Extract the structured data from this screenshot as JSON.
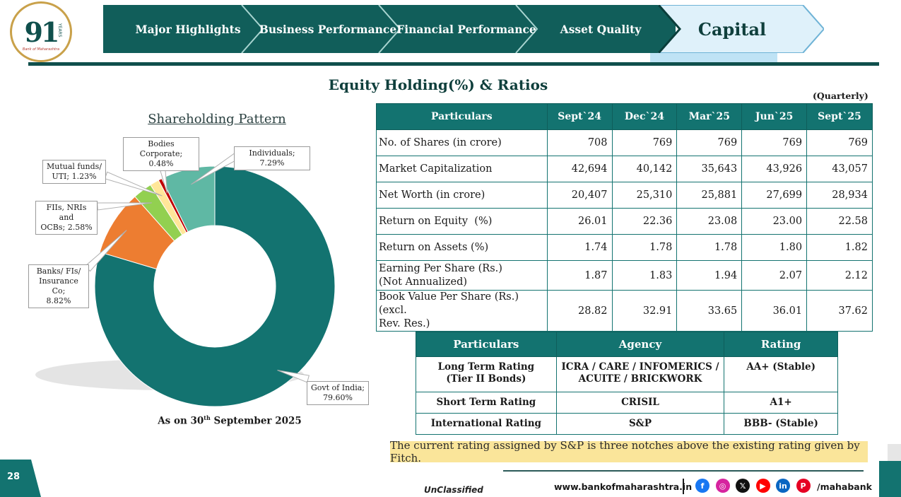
{
  "logo": {
    "number": "91",
    "years": "YEARS",
    "tagline": "Bank of Maharashtra"
  },
  "nav": {
    "items": [
      "Major Highlights",
      "Business Performance",
      "Financial Performance",
      "Asset Quality"
    ],
    "active": "Capital"
  },
  "title": "Equity Holding(%) & Ratios",
  "quarterly": "(Quarterly)",
  "chart_data": {
    "type": "pie",
    "title": "Shareholding Pattern",
    "subtitle": "As on 30th September 2025",
    "categories": [
      "Govt of India",
      "Banks/ FIs/ Insurance Co",
      "FIIs, NRIs and OCBs",
      "Mutual funds/ UTI",
      "Bodies Corporate",
      "Individuals"
    ],
    "values": [
      79.6,
      8.82,
      2.58,
      1.23,
      0.48,
      7.29
    ],
    "colors": [
      "#137370",
      "#ed7d31",
      "#92d050",
      "#ffe699",
      "#c00000",
      "#5fb8a4"
    ],
    "labels": [
      "Govt of India; 79.60%",
      "Banks/ FIs/ Insurance Co; 8.82%",
      "FIIs, NRIs and OCBs; 2.58%",
      "Mutual funds/ UTI; 1.23%",
      "Bodies Corporate; 0.48%",
      "Individuals; 7.29%"
    ],
    "label_lines": [
      [
        "Govt of India;",
        "79.60%"
      ],
      [
        "Banks/ FIs/",
        "Insurance Co;",
        "8.82%"
      ],
      [
        "FIIs, NRIs and",
        "OCBs; 2.58%"
      ],
      [
        "Mutual funds/",
        "UTI; 1.23%"
      ],
      [
        "Bodies Corporate;",
        "0.48%"
      ],
      [
        "Individuals; 7.29%"
      ]
    ],
    "legend": "callouts"
  },
  "as_on": {
    "prefix": "As on 30",
    "sup": "th",
    "suffix": " September 2025"
  },
  "ratios": {
    "headers": [
      "Particulars",
      "Sept`24",
      "Dec`24",
      "Mar`25",
      "Jun`25",
      "Sept`25"
    ],
    "rows": [
      {
        "label": "No. of Shares (in crore)",
        "values": [
          "708",
          "769",
          "769",
          "769",
          "769"
        ]
      },
      {
        "label": "Market Capitalization",
        "values": [
          "42,694",
          "40,142",
          "35,643",
          "43,926",
          "43,057"
        ]
      },
      {
        "label": "Net Worth (in crore)",
        "values": [
          "20,407",
          "25,310",
          "25,881",
          "27,699",
          "28,934"
        ]
      },
      {
        "label": "Return on Equity  (%)",
        "values": [
          "26.01",
          "22.36",
          "23.08",
          "23.00",
          "22.58"
        ]
      },
      {
        "label": "Return on Assets (%)",
        "values": [
          "1.74",
          "1.78",
          "1.78",
          "1.80",
          "1.82"
        ]
      },
      {
        "label": "Earning Per Share (Rs.)",
        "label2": "(Not Annualized)",
        "values": [
          "1.87",
          "1.83",
          "1.94",
          "2.07",
          "2.12"
        ]
      },
      {
        "label": "Book Value Per Share (Rs.) (excl.",
        "label2": "Rev. Res.)",
        "values": [
          "28.82",
          "32.91",
          "33.65",
          "36.01",
          "37.62"
        ]
      }
    ]
  },
  "rating": {
    "headers": [
      "Particulars",
      "Agency",
      "Rating"
    ],
    "rows": [
      {
        "particular": "Long Term Rating",
        "particular2": "(Tier II Bonds)",
        "agency": "ICRA / CARE / INFOMERICS /",
        "agency2": "ACUITE / BRICKWORK",
        "rating": "AA+ (Stable)"
      },
      {
        "particular": "Short Term Rating",
        "agency": "CRISIL",
        "rating": "A1+"
      },
      {
        "particular": "International Rating",
        "agency": "S&P",
        "rating": "BBB- (Stable)"
      }
    ]
  },
  "note": "The current rating assigned by S&P is three notches above the existing rating given by Fitch.",
  "footer": {
    "page": "28",
    "classification": "UnClassified",
    "website": "www.bankofmaharashtra.in",
    "handle": "/mahabank",
    "social": [
      {
        "icon": "facebook-icon",
        "glyph": "f",
        "color": "#1877f2"
      },
      {
        "icon": "instagram-icon",
        "glyph": "◎",
        "color": "#d6249f"
      },
      {
        "icon": "x-icon",
        "glyph": "𝕏",
        "color": "#111111"
      },
      {
        "icon": "youtube-icon",
        "glyph": "▶",
        "color": "#ff0000"
      },
      {
        "icon": "linkedin-icon",
        "glyph": "in",
        "color": "#0a66c2"
      },
      {
        "icon": "pinterest-icon",
        "glyph": "P",
        "color": "#e60023"
      }
    ]
  }
}
